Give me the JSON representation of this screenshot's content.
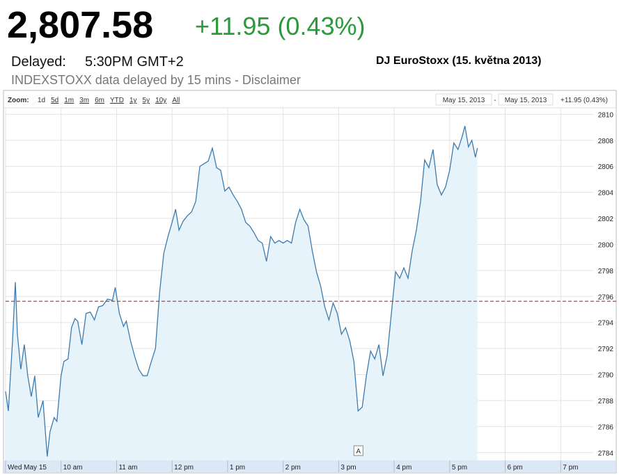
{
  "header": {
    "price": "2,807.58",
    "change": "+11.95 (0.43%)",
    "delayed_label": "Delayed:",
    "time": "5:30PM GMT+2",
    "note": "INDEXSTOXX data delayed by 15 mins - Disclaimer",
    "caption": "DJ EuroStoxx (15. května 2013)"
  },
  "toolbar": {
    "zoom_label": "Zoom:",
    "zoom_options": [
      "1d",
      "5d",
      "1m",
      "3m",
      "6m",
      "YTD",
      "1y",
      "5y",
      "10y",
      "All"
    ],
    "range_start": "May 15, 2013",
    "range_sep": "-",
    "range_end": "May 15, 2013",
    "range_change": "+11.95 (0.43%)"
  },
  "chart_data": {
    "type": "area",
    "x": [
      9.0,
      9.05,
      9.125,
      9.175,
      9.213,
      9.275,
      9.338,
      9.4,
      9.463,
      9.525,
      9.588,
      9.675,
      9.75,
      9.8,
      9.875,
      9.925,
      10.0,
      10.05,
      10.125,
      10.188,
      10.25,
      10.3,
      10.375,
      10.45,
      10.525,
      10.6,
      10.675,
      10.75,
      10.838,
      10.925,
      10.975,
      11.05,
      11.125,
      11.175,
      11.25,
      11.325,
      11.4,
      11.475,
      11.55,
      11.625,
      11.7,
      11.775,
      11.85,
      11.925,
      12.0,
      12.063,
      12.125,
      12.2,
      12.275,
      12.35,
      12.425,
      12.5,
      12.575,
      12.65,
      12.725,
      12.8,
      12.875,
      12.95,
      13.025,
      13.1,
      13.175,
      13.25,
      13.325,
      13.4,
      13.475,
      13.55,
      13.625,
      13.7,
      13.775,
      13.85,
      13.925,
      14.0,
      14.075,
      14.15,
      14.225,
      14.3,
      14.375,
      14.45,
      14.525,
      14.6,
      14.675,
      14.75,
      14.825,
      14.9,
      14.975,
      15.05,
      15.125,
      15.2,
      15.275,
      15.35,
      15.425,
      15.5,
      15.575,
      15.65,
      15.725,
      15.8,
      15.875,
      15.95,
      16.025,
      16.1,
      16.175,
      16.25,
      16.325,
      16.4,
      16.475,
      16.55,
      16.625,
      16.7,
      16.775,
      16.85,
      16.925,
      17.0,
      17.075,
      17.15,
      17.225,
      17.275,
      17.338,
      17.4,
      17.463,
      17.5
    ],
    "series": [
      {
        "color": "#3d7bad",
        "fill": "#e6f3fb",
        "values": [
          2788.7,
          2787.2,
          2792.6,
          2797.1,
          2793.1,
          2790.4,
          2792.3,
          2789.9,
          2788.3,
          2789.9,
          2786.7,
          2788.0,
          2783.7,
          2785.6,
          2786.7,
          2786.4,
          2789.9,
          2791.0,
          2791.2,
          2793.6,
          2794.3,
          2794.1,
          2792.3,
          2794.7,
          2794.8,
          2794.2,
          2795.2,
          2795.3,
          2795.8,
          2795.7,
          2796.7,
          2794.7,
          2793.7,
          2794.1,
          2792.6,
          2791.4,
          2790.4,
          2789.9,
          2789.9,
          2791.0,
          2792.0,
          2796.3,
          2799.3,
          2800.6,
          2801.7,
          2802.7,
          2801.1,
          2801.8,
          2802.2,
          2802.5,
          2803.3,
          2806.0,
          2806.2,
          2806.4,
          2807.4,
          2805.9,
          2805.7,
          2804.1,
          2804.4,
          2803.8,
          2803.3,
          2802.7,
          2801.7,
          2801.4,
          2800.9,
          2800.3,
          2800.1,
          2798.7,
          2800.6,
          2800.1,
          2800.3,
          2800.1,
          2800.3,
          2800.1,
          2801.7,
          2802.7,
          2801.9,
          2801.4,
          2799.5,
          2797.9,
          2796.8,
          2795.2,
          2794.2,
          2795.5,
          2794.7,
          2793.1,
          2793.6,
          2792.6,
          2791.0,
          2787.2,
          2787.5,
          2789.9,
          2791.8,
          2791.2,
          2792.3,
          2789.9,
          2791.5,
          2794.7,
          2797.9,
          2797.4,
          2798.2,
          2797.4,
          2799.5,
          2801.1,
          2803.3,
          2806.5,
          2805.9,
          2807.3,
          2804.6,
          2803.8,
          2804.4,
          2805.7,
          2807.8,
          2807.3,
          2808.3,
          2809.1,
          2807.5,
          2808.0,
          2806.7,
          2807.4
        ]
      }
    ],
    "xlim": [
      9,
      20
    ],
    "ylim": [
      2783.4,
      2810.5
    ],
    "xticks": [
      {
        "value": 9,
        "label": "Wed May 15"
      },
      {
        "value": 10,
        "label": "10 am"
      },
      {
        "value": 11,
        "label": "11 am"
      },
      {
        "value": 12,
        "label": "12 pm"
      },
      {
        "value": 13,
        "label": "1 pm"
      },
      {
        "value": 14,
        "label": "2 pm"
      },
      {
        "value": 15,
        "label": "3 pm"
      },
      {
        "value": 16,
        "label": "4 pm"
      },
      {
        "value": 17,
        "label": "5 pm"
      },
      {
        "value": 18,
        "label": "6 pm"
      },
      {
        "value": 19,
        "label": "7 pm"
      }
    ],
    "yticks": [
      2784,
      2786,
      2788,
      2790,
      2792,
      2794,
      2796,
      2798,
      2800,
      2802,
      2804,
      2806,
      2808,
      2810
    ],
    "grid": true,
    "reference_line": {
      "value": 2795.63,
      "color": "#8b3a3a"
    },
    "annotation": {
      "x": 15.35,
      "label": "A"
    }
  }
}
